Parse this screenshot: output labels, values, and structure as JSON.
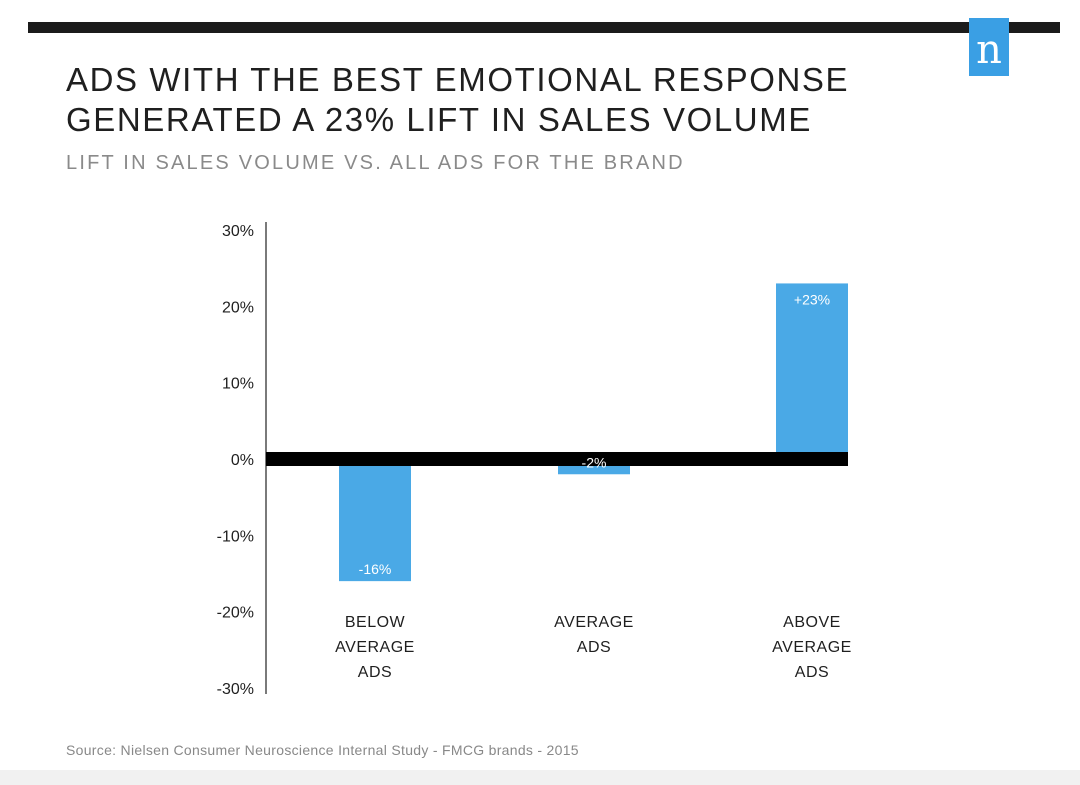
{
  "logo": {
    "letter": "n",
    "color": "#3a9fe4"
  },
  "header": {
    "title": "ADS WITH THE BEST EMOTIONAL RESPONSE GENERATED A 23% LIFT IN SALES VOLUME",
    "subtitle": "LIFT IN SALES VOLUME VS. ALL ADS FOR THE BRAND"
  },
  "footer": {
    "source": "Source: Nielsen Consumer Neuroscience Internal Study - FMCG brands - 2015"
  },
  "chart_data": {
    "type": "bar",
    "title": "ADS WITH THE BEST EMOTIONAL RESPONSE GENERATED A 23% LIFT IN SALES VOLUME",
    "subtitle": "LIFT IN SALES VOLUME VS. ALL ADS FOR THE BRAND",
    "categories": [
      [
        "BELOW",
        "AVERAGE",
        "ADS"
      ],
      [
        "AVERAGE",
        "ADS"
      ],
      [
        "ABOVE",
        "AVERAGE",
        "ADS"
      ]
    ],
    "values": [
      -16,
      -2,
      23
    ],
    "data_labels": [
      "-16%",
      "-2%",
      "+23%"
    ],
    "ylim": [
      -30,
      30
    ],
    "yticks": [
      30,
      20,
      10,
      0,
      -10,
      -20,
      -30
    ],
    "ytick_labels": [
      "30%",
      "20%",
      "10%",
      "0%",
      "-10%",
      "-20%",
      "-30%"
    ],
    "xlabel": "",
    "ylabel": "",
    "grid": false,
    "bar_color": "#4aa9e6",
    "zero_line_color": "#000000"
  }
}
